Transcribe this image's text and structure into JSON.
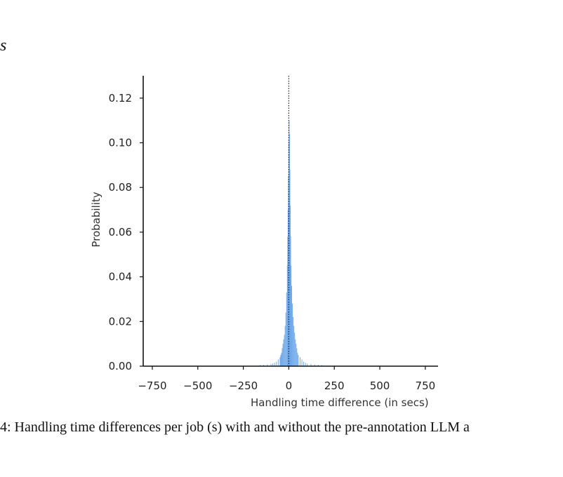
{
  "page": {
    "heading_fragment": "s",
    "caption": "4: Handling time differences per job (s) with and without the pre-annotation LLM a"
  },
  "chart_data": {
    "type": "bar",
    "title": "",
    "xlabel": "Handling time difference (in secs)",
    "ylabel": "Probability",
    "xlim": [
      -800,
      820
    ],
    "ylim": [
      0,
      0.13
    ],
    "xticks": [
      -750,
      -500,
      -250,
      0,
      250,
      500,
      750
    ],
    "xtick_labels": [
      "−750",
      "−500",
      "−250",
      "0",
      "250",
      "500",
      "750"
    ],
    "yticks": [
      0,
      0.02,
      0.04,
      0.06,
      0.08,
      0.1,
      0.12
    ],
    "ytick_labels": [
      "0.00",
      "0.02",
      "0.04",
      "0.06",
      "0.08",
      "0.10",
      "0.12"
    ],
    "bin_width": 2,
    "bar_color": "#6fa8e8",
    "reference_line": {
      "x": 0,
      "style": "dotted",
      "color": "#222222"
    },
    "bins": {
      "x": [
        -160,
        -140,
        -120,
        -100,
        -90,
        -80,
        -70,
        -60,
        -50,
        -46,
        -42,
        -38,
        -34,
        -30,
        -26,
        -22,
        -18,
        -14,
        -10,
        -8,
        -6,
        -4,
        -2,
        0,
        2,
        4,
        6,
        8,
        10,
        14,
        18,
        22,
        26,
        30,
        34,
        38,
        42,
        46,
        50,
        60,
        70,
        80,
        90,
        100,
        120,
        140,
        160,
        180
      ],
      "values": [
        0.0005,
        0.0006,
        0.0008,
        0.001,
        0.0012,
        0.0015,
        0.002,
        0.003,
        0.004,
        0.005,
        0.006,
        0.008,
        0.01,
        0.012,
        0.014,
        0.018,
        0.024,
        0.033,
        0.045,
        0.058,
        0.07,
        0.085,
        0.1,
        0.11,
        0.104,
        0.088,
        0.072,
        0.058,
        0.045,
        0.036,
        0.028,
        0.022,
        0.018,
        0.015,
        0.012,
        0.01,
        0.008,
        0.006,
        0.005,
        0.004,
        0.003,
        0.002,
        0.0015,
        0.0012,
        0.001,
        0.0008,
        0.0006,
        0.0005
      ]
    }
  }
}
